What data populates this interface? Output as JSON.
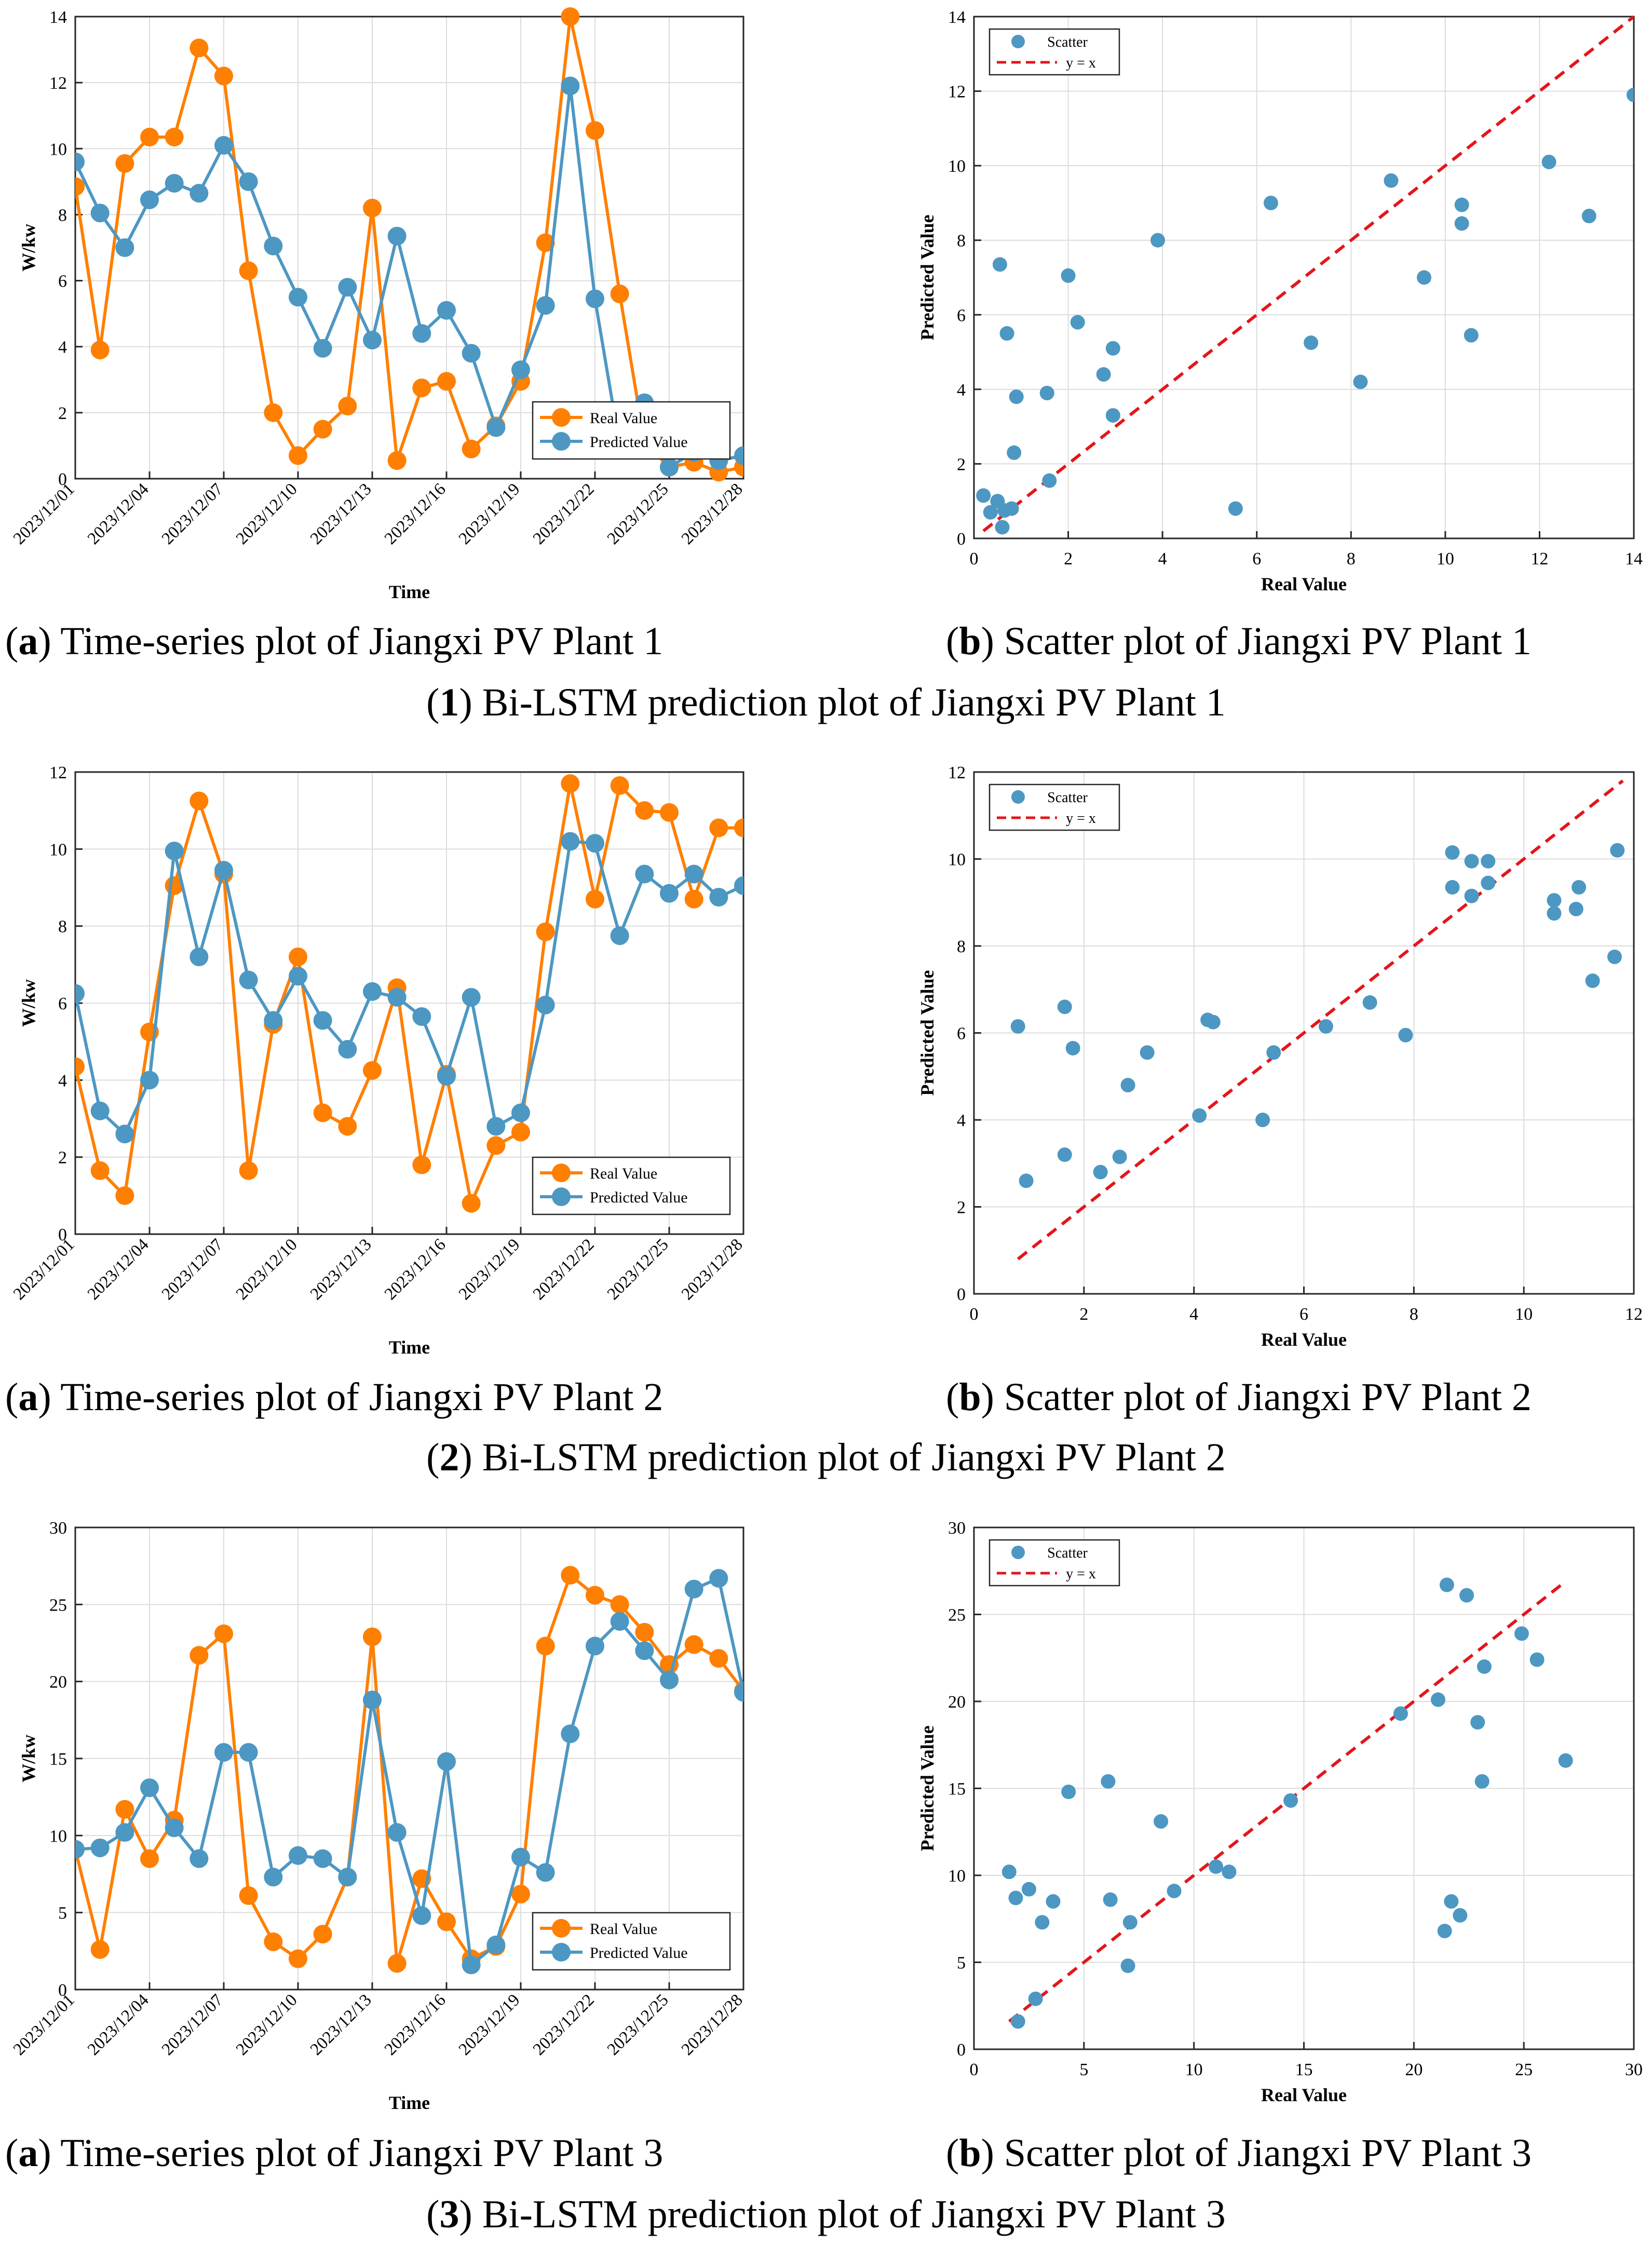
{
  "colors": {
    "real": "#ff7f00",
    "pred": "#4d97c3",
    "ideal": "#e3161b",
    "grid": "#dcdcdc",
    "axis": "#262626"
  },
  "rows": [
    {
      "caption_num": "1",
      "caption_text": ") Bi-LSTM prediction plot of Jiangxi PV Plant 1",
      "sub_a_label": "a",
      "sub_a_text": ") Time-series plot of Jiangxi PV Plant 1",
      "sub_b_label": "b",
      "sub_b_text": ") Scatter plot of Jiangxi PV Plant 1"
    },
    {
      "caption_num": "2",
      "caption_text": ") Bi-LSTM prediction plot of Jiangxi PV Plant 2",
      "sub_a_label": "a",
      "sub_a_text": ") Time-series plot of Jiangxi PV Plant 2",
      "sub_b_label": "b",
      "sub_b_text": ") Scatter plot of Jiangxi PV Plant 2"
    },
    {
      "caption_num": "3",
      "caption_text": ") Bi-LSTM prediction plot of Jiangxi PV Plant 3",
      "sub_a_label": "a",
      "sub_a_text": ") Time-series plot of Jiangxi PV Plant 3",
      "sub_b_label": "b",
      "sub_b_text": ") Scatter plot of Jiangxi PV Plant 3"
    }
  ],
  "chart_data": [
    {
      "type": "line",
      "id": "ts1",
      "title": "Time-series plot of Jiangxi PV Plant 1",
      "xlabel": "Time",
      "ylabel": "W/kw",
      "ylim": [
        0,
        14
      ],
      "yticks": [
        0,
        2,
        4,
        6,
        8,
        10,
        12,
        14
      ],
      "xticks": [
        "2023/12/01",
        "2023/12/04",
        "2023/12/07",
        "2023/12/10",
        "2023/12/13",
        "2023/12/16",
        "2023/12/19",
        "2023/12/22",
        "2023/12/25",
        "2023/12/28"
      ],
      "legend": [
        "Real Value",
        "Predicted Value"
      ],
      "legend_loc": "bottom-right",
      "series": [
        {
          "name": "Real Value",
          "values": [
            8.85,
            3.9,
            9.55,
            10.35,
            10.35,
            13.05,
            12.2,
            6.3,
            2.0,
            0.7,
            1.5,
            2.2,
            8.2,
            0.55,
            2.75,
            2.95,
            0.9,
            1.6,
            2.95,
            7.15,
            14.0,
            10.55,
            5.6,
            1.1,
            0.35,
            0.5,
            0.2,
            0.35
          ]
        },
        {
          "name": "Predicted Value",
          "values": [
            9.6,
            8.05,
            7.0,
            8.45,
            8.95,
            8.65,
            10.1,
            9.0,
            7.05,
            5.5,
            3.95,
            5.8,
            4.2,
            7.35,
            4.4,
            5.1,
            3.8,
            1.55,
            3.3,
            5.25,
            11.9,
            5.45,
            1.0,
            2.3,
            0.35,
            0.8,
            0.55,
            0.7
          ]
        }
      ]
    },
    {
      "type": "scatter",
      "id": "sc1",
      "title": "Scatter plot of Jiangxi PV Plant 1",
      "xlabel": "Real Value",
      "ylabel": "Predicted Value",
      "xlim": [
        0,
        14
      ],
      "ylim": [
        0,
        14
      ],
      "xticks": [
        0,
        2,
        4,
        6,
        8,
        10,
        12,
        14
      ],
      "yticks": [
        0,
        2,
        4,
        6,
        8,
        10,
        12,
        14
      ],
      "legend": [
        "Scatter",
        "y = x"
      ],
      "legend_loc": "top-left",
      "ideal_range": [
        0.2,
        14
      ],
      "points": [
        [
          0.2,
          1.15
        ],
        [
          0.35,
          0.7
        ],
        [
          0.5,
          1.0
        ],
        [
          0.55,
          7.35
        ],
        [
          0.6,
          0.3
        ],
        [
          0.65,
          0.75
        ],
        [
          0.7,
          5.5
        ],
        [
          0.8,
          0.8
        ],
        [
          0.85,
          2.3
        ],
        [
          0.9,
          3.8
        ],
        [
          1.55,
          3.9
        ],
        [
          1.6,
          1.55
        ],
        [
          2.0,
          7.05
        ],
        [
          2.2,
          5.8
        ],
        [
          2.75,
          4.4
        ],
        [
          2.95,
          5.1
        ],
        [
          2.95,
          3.3
        ],
        [
          3.9,
          8.0
        ],
        [
          5.55,
          0.8
        ],
        [
          6.3,
          9.0
        ],
        [
          7.15,
          5.25
        ],
        [
          8.2,
          4.2
        ],
        [
          8.85,
          9.6
        ],
        [
          9.55,
          7.0
        ],
        [
          10.35,
          8.95
        ],
        [
          10.35,
          8.45
        ],
        [
          10.55,
          5.45
        ],
        [
          12.2,
          10.1
        ],
        [
          13.05,
          8.65
        ],
        [
          14.0,
          11.9
        ]
      ]
    },
    {
      "type": "line",
      "id": "ts2",
      "title": "Time-series plot of Jiangxi PV Plant 2",
      "xlabel": "Time",
      "ylabel": "W/kw",
      "ylim": [
        0,
        12
      ],
      "yticks": [
        0,
        2,
        4,
        6,
        8,
        10,
        12
      ],
      "xticks": [
        "2023/12/01",
        "2023/12/04",
        "2023/12/07",
        "2023/12/10",
        "2023/12/13",
        "2023/12/16",
        "2023/12/19",
        "2023/12/22",
        "2023/12/25",
        "2023/12/28"
      ],
      "legend": [
        "Real Value",
        "Predicted Value"
      ],
      "legend_loc": "bottom-right",
      "series": [
        {
          "name": "Real Value",
          "values": [
            4.35,
            1.65,
            1.0,
            5.25,
            9.05,
            11.25,
            9.35,
            1.65,
            5.45,
            7.2,
            3.15,
            2.8,
            4.25,
            6.4,
            1.8,
            4.15,
            0.8,
            2.3,
            2.65,
            7.85,
            11.7,
            8.7,
            11.65,
            11.0,
            10.95,
            8.7,
            10.55,
            10.55
          ]
        },
        {
          "name": "Predicted Value",
          "values": [
            6.25,
            3.2,
            2.6,
            4.0,
            9.95,
            7.2,
            9.45,
            6.6,
            5.55,
            6.7,
            5.55,
            4.8,
            6.3,
            6.15,
            5.65,
            4.1,
            6.15,
            2.8,
            3.15,
            5.95,
            10.2,
            10.15,
            7.75,
            9.35,
            8.85,
            9.35,
            8.75,
            9.05
          ]
        }
      ]
    },
    {
      "type": "scatter",
      "id": "sc2",
      "title": "Scatter plot of Jiangxi PV Plant 2",
      "xlabel": "Real Value",
      "ylabel": "Predicted Value",
      "xlim": [
        0,
        12
      ],
      "ylim": [
        0,
        12
      ],
      "xticks": [
        0,
        2,
        4,
        6,
        8,
        10,
        12
      ],
      "yticks": [
        0,
        2,
        4,
        6,
        8,
        10,
        12
      ],
      "legend": [
        "Scatter",
        "y = x"
      ],
      "legend_loc": "top-left",
      "ideal_range": [
        0.8,
        11.8
      ],
      "points": [
        [
          0.8,
          6.15
        ],
        [
          0.95,
          2.6
        ],
        [
          1.65,
          3.2
        ],
        [
          1.65,
          6.6
        ],
        [
          1.8,
          5.65
        ],
        [
          2.3,
          2.8
        ],
        [
          2.65,
          3.15
        ],
        [
          2.8,
          4.8
        ],
        [
          3.15,
          5.55
        ],
        [
          4.1,
          4.1
        ],
        [
          4.25,
          6.3
        ],
        [
          4.35,
          6.25
        ],
        [
          5.25,
          4.0
        ],
        [
          5.45,
          5.55
        ],
        [
          6.4,
          6.15
        ],
        [
          7.2,
          6.7
        ],
        [
          7.85,
          5.95
        ],
        [
          8.7,
          10.15
        ],
        [
          8.7,
          9.35
        ],
        [
          9.05,
          9.95
        ],
        [
          9.05,
          9.15
        ],
        [
          9.35,
          9.45
        ],
        [
          9.35,
          9.95
        ],
        [
          10.55,
          9.05
        ],
        [
          10.55,
          8.75
        ],
        [
          10.95,
          8.85
        ],
        [
          11.0,
          9.35
        ],
        [
          11.25,
          7.2
        ],
        [
          11.65,
          7.75
        ],
        [
          11.7,
          10.2
        ]
      ]
    },
    {
      "type": "line",
      "id": "ts3",
      "title": "Time-series plot of Jiangxi PV Plant 3",
      "xlabel": "Time",
      "ylabel": "W/kw",
      "ylim": [
        0,
        30
      ],
      "yticks": [
        0,
        5,
        10,
        15,
        20,
        25,
        30
      ],
      "xticks": [
        "2023/12/01",
        "2023/12/04",
        "2023/12/07",
        "2023/12/10",
        "2023/12/13",
        "2023/12/16",
        "2023/12/19",
        "2023/12/22",
        "2023/12/25",
        "2023/12/28"
      ],
      "legend": [
        "Real Value",
        "Predicted Value"
      ],
      "legend_loc": "bottom-right",
      "series": [
        {
          "name": "Real Value",
          "values": [
            9.1,
            2.6,
            11.7,
            8.5,
            11.0,
            21.7,
            23.1,
            6.1,
            3.1,
            2.0,
            3.6,
            7.3,
            22.9,
            1.7,
            7.2,
            4.4,
            2.0,
            2.8,
            6.2,
            22.3,
            26.9,
            25.6,
            25.0,
            23.2,
            21.1,
            22.4,
            21.5,
            19.4
          ]
        },
        {
          "name": "Predicted Value",
          "values": [
            9.1,
            9.2,
            10.2,
            13.1,
            10.5,
            8.5,
            15.4,
            15.4,
            7.3,
            8.7,
            8.5,
            7.3,
            18.8,
            10.2,
            4.8,
            14.8,
            1.6,
            2.9,
            8.6,
            7.6,
            16.6,
            22.3,
            23.9,
            22.0,
            20.1,
            26.0,
            26.7,
            19.3
          ]
        }
      ]
    },
    {
      "type": "scatter",
      "id": "sc3",
      "title": "Scatter plot of Jiangxi PV Plant 3",
      "xlabel": "Real Value",
      "ylabel": "Predicted Value",
      "xlim": [
        0,
        30
      ],
      "ylim": [
        0,
        30
      ],
      "xticks": [
        0,
        5,
        10,
        15,
        20,
        25,
        30
      ],
      "yticks": [
        0,
        5,
        10,
        15,
        20,
        25,
        30
      ],
      "legend": [
        "Scatter",
        "y = x"
      ],
      "legend_loc": "top-left",
      "ideal_range": [
        1.6,
        26.9
      ],
      "points": [
        [
          1.6,
          10.2
        ],
        [
          1.9,
          8.7
        ],
        [
          2.0,
          1.6
        ],
        [
          2.5,
          9.2
        ],
        [
          2.8,
          2.9
        ],
        [
          3.1,
          7.3
        ],
        [
          3.6,
          8.5
        ],
        [
          4.3,
          14.8
        ],
        [
          6.1,
          15.4
        ],
        [
          6.2,
          8.6
        ],
        [
          7.1,
          7.3
        ],
        [
          7.0,
          4.8
        ],
        [
          8.5,
          13.1
        ],
        [
          9.1,
          9.1
        ],
        [
          11.0,
          10.5
        ],
        [
          11.6,
          10.2
        ],
        [
          14.4,
          14.3
        ],
        [
          19.4,
          19.3
        ],
        [
          21.1,
          20.1
        ],
        [
          21.4,
          6.8
        ],
        [
          21.5,
          26.7
        ],
        [
          21.7,
          8.5
        ],
        [
          22.1,
          7.7
        ],
        [
          22.4,
          26.1
        ],
        [
          22.9,
          18.8
        ],
        [
          23.1,
          15.4
        ],
        [
          23.2,
          22.0
        ],
        [
          24.9,
          23.9
        ],
        [
          25.6,
          22.4
        ],
        [
          26.9,
          16.6
        ]
      ]
    }
  ]
}
